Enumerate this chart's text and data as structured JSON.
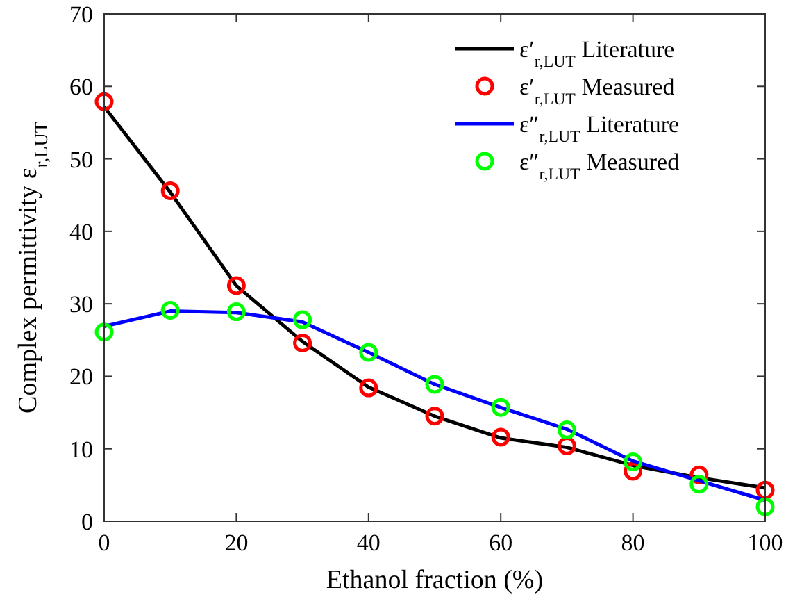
{
  "chart_data": {
    "type": "line",
    "xlabel": "Ethanol fraction (%)",
    "ylabel": "Complex permittivity ε$_{r,LUT}$",
    "x": [
      0,
      10,
      20,
      30,
      40,
      50,
      60,
      70,
      80,
      90,
      100
    ],
    "xlim": [
      0,
      100
    ],
    "xticks": [
      0,
      20,
      40,
      60,
      80,
      100
    ],
    "ylim": [
      0,
      70
    ],
    "yticks": [
      0,
      10,
      20,
      30,
      40,
      50,
      60,
      70
    ],
    "grid": false,
    "legend": "top right",
    "series": [
      {
        "name": "ε′$_{r,LUT}$ Literature",
        "type": "line",
        "marker": "none",
        "color": "#000000",
        "values": [
          57.2,
          45.4,
          32.5,
          24.8,
          18.5,
          14.5,
          11.5,
          10.2,
          7.7,
          6.0,
          4.6
        ]
      },
      {
        "name": "ε′$_{r,LUT}$ Measured",
        "type": "scatter",
        "marker": "circle",
        "color": "#ff0000",
        "values": [
          57.9,
          45.6,
          32.5,
          24.6,
          18.4,
          14.5,
          11.6,
          10.4,
          6.9,
          6.4,
          4.3
        ]
      },
      {
        "name": "ε″$_{r,LUT}$ Literature",
        "type": "line",
        "marker": "none",
        "color": "#0000ff",
        "values": [
          26.9,
          29.0,
          28.8,
          27.5,
          23.3,
          18.9,
          15.7,
          12.7,
          8.3,
          5.6,
          2.9
        ]
      },
      {
        "name": "ε″$_{r,LUT}$ Measured",
        "type": "scatter",
        "marker": "circle",
        "color": "#00ff00",
        "values": [
          26.1,
          29.1,
          28.9,
          27.8,
          23.3,
          18.9,
          15.7,
          12.6,
          8.2,
          5.1,
          2.0
        ]
      }
    ]
  }
}
